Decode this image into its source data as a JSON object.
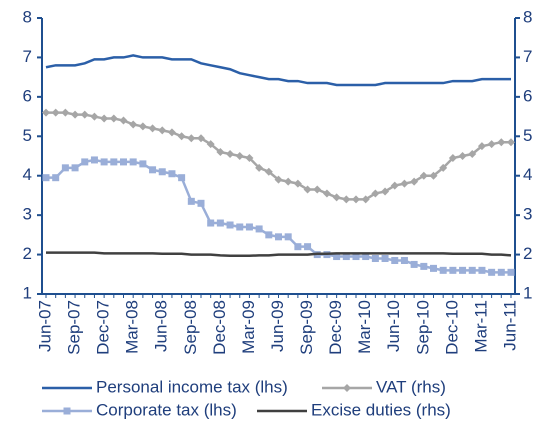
{
  "chart_data": {
    "type": "line",
    "categories": [
      "Jun-07",
      null,
      null,
      "Sep-07",
      null,
      null,
      "Dec-07",
      null,
      null,
      "Mar-08",
      null,
      null,
      "Jun-08",
      null,
      null,
      "Sep-08",
      null,
      null,
      "Dec-08",
      null,
      null,
      "Mar-09",
      null,
      null,
      "Jun-09",
      null,
      null,
      "Sep-09",
      null,
      null,
      "Dec-09",
      null,
      null,
      "Mar-10",
      null,
      null,
      "Jun-10",
      null,
      null,
      "Sep-10",
      null,
      null,
      "Dec-10",
      null,
      null,
      "Mar-11",
      null,
      null,
      "Jun-11"
    ],
    "series": [
      {
        "name": "Personal income tax (lhs)",
        "color": "#2b5fa8",
        "values": [
          6.75,
          6.8,
          6.8,
          6.8,
          6.85,
          6.95,
          6.95,
          7.0,
          7.0,
          7.05,
          7.0,
          7.0,
          7.0,
          6.95,
          6.95,
          6.95,
          6.85,
          6.8,
          6.75,
          6.7,
          6.6,
          6.55,
          6.5,
          6.45,
          6.45,
          6.4,
          6.4,
          6.35,
          6.35,
          6.35,
          6.3,
          6.3,
          6.3,
          6.3,
          6.3,
          6.35,
          6.35,
          6.35,
          6.35,
          6.35,
          6.35,
          6.35,
          6.4,
          6.4,
          6.4,
          6.45,
          6.45,
          6.45,
          6.45
        ]
      },
      {
        "name": "VAT (rhs)",
        "color": "#a6a6a6",
        "marker": "diamond",
        "axis": "y2",
        "values": [
          5.6,
          5.6,
          5.6,
          5.55,
          5.55,
          5.5,
          5.45,
          5.45,
          5.4,
          5.3,
          5.25,
          5.2,
          5.15,
          5.1,
          5.0,
          4.95,
          4.95,
          4.8,
          4.6,
          4.55,
          4.5,
          4.45,
          4.2,
          4.1,
          3.9,
          3.85,
          3.8,
          3.65,
          3.65,
          3.55,
          3.45,
          3.4,
          3.4,
          3.4,
          3.55,
          3.6,
          3.75,
          3.8,
          3.85,
          4.0,
          4.0,
          4.2,
          4.45,
          4.5,
          4.55,
          4.75,
          4.8,
          4.85,
          4.85
        ]
      },
      {
        "name": "Corporate tax (lhs)",
        "color": "#9aaed8",
        "marker": "square",
        "values": [
          3.95,
          3.95,
          4.2,
          4.2,
          4.35,
          4.4,
          4.35,
          4.35,
          4.35,
          4.35,
          4.3,
          4.15,
          4.1,
          4.05,
          3.95,
          3.35,
          3.3,
          2.8,
          2.8,
          2.75,
          2.7,
          2.7,
          2.65,
          2.5,
          2.45,
          2.45,
          2.2,
          2.2,
          2.0,
          2.0,
          1.95,
          1.95,
          1.95,
          1.95,
          1.9,
          1.9,
          1.85,
          1.85,
          1.75,
          1.7,
          1.65,
          1.6,
          1.6,
          1.6,
          1.6,
          1.6,
          1.55,
          1.55,
          1.55
        ]
      },
      {
        "name": "Excise duties (rhs)",
        "color": "#404040",
        "axis": "y2",
        "values": [
          2.05,
          2.05,
          2.05,
          2.05,
          2.05,
          2.05,
          2.03,
          2.03,
          2.03,
          2.03,
          2.03,
          2.03,
          2.02,
          2.02,
          2.02,
          2.0,
          2.0,
          2.0,
          1.98,
          1.97,
          1.97,
          1.97,
          1.98,
          1.98,
          2.0,
          2.0,
          2.0,
          2.0,
          2.02,
          2.02,
          2.03,
          2.03,
          2.03,
          2.03,
          2.03,
          2.03,
          2.03,
          2.03,
          2.03,
          2.03,
          2.03,
          2.03,
          2.02,
          2.02,
          2.02,
          2.02,
          2.0,
          2.0,
          1.98
        ]
      }
    ],
    "ylim": [
      1,
      8
    ],
    "yticks": [
      1,
      2,
      3,
      4,
      5,
      6,
      7,
      8
    ],
    "y2lim": [
      1,
      8
    ],
    "y2ticks": [
      1,
      2,
      3,
      4,
      5,
      6,
      7,
      8
    ],
    "grid": false
  }
}
